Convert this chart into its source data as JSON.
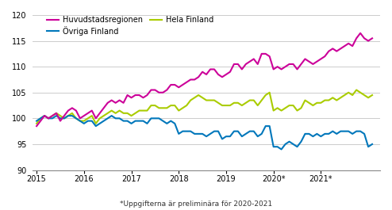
{
  "title": "",
  "footnote": "*Uppgifterna är preliminära för 2020-2021",
  "ylim": [
    90,
    120
  ],
  "yticks": [
    90,
    95,
    100,
    105,
    110,
    115,
    120
  ],
  "xlabel": "",
  "xtick_labels": [
    "2015",
    "2016",
    "2017",
    "2018",
    "2019",
    "2020*",
    "2021*"
  ],
  "xtick_positions": [
    0,
    12,
    24,
    36,
    48,
    60,
    72
  ],
  "series": {
    "Huvudstadsregionen": {
      "color": "#cc0099",
      "linewidth": 1.5,
      "values": [
        98.5,
        99.5,
        100.5,
        100.0,
        100.5,
        101.0,
        99.5,
        100.5,
        101.5,
        102.0,
        101.5,
        100.0,
        100.5,
        101.0,
        101.5,
        100.0,
        101.0,
        102.0,
        103.0,
        103.5,
        103.0,
        103.5,
        103.0,
        104.5,
        104.0,
        104.5,
        104.5,
        104.0,
        104.5,
        105.5,
        105.5,
        105.0,
        105.0,
        105.5,
        106.5,
        106.5,
        106.0,
        106.5,
        107.0,
        107.5,
        107.5,
        108.0,
        109.0,
        108.5,
        109.5,
        109.5,
        108.5,
        108.0,
        108.5,
        109.0,
        110.5,
        110.5,
        109.5,
        110.5,
        111.0,
        111.5,
        110.5,
        112.5,
        112.5,
        112.0,
        109.5,
        110.0,
        109.5,
        110.0,
        110.5,
        110.5,
        109.5,
        110.5,
        111.5,
        111.0,
        110.5,
        111.0,
        111.5,
        112.0,
        113.0,
        113.5,
        113.0,
        113.5,
        114.0,
        114.5,
        114.0,
        115.5,
        116.5,
        115.5,
        115.0,
        115.5
      ]
    },
    "Hela Finland": {
      "color": "#aacc00",
      "linewidth": 1.5,
      "values": [
        99.0,
        100.0,
        100.5,
        100.0,
        100.5,
        101.0,
        100.5,
        100.0,
        100.5,
        101.0,
        100.0,
        99.5,
        99.5,
        100.0,
        100.5,
        99.0,
        100.0,
        100.5,
        101.0,
        101.5,
        101.0,
        101.5,
        101.0,
        101.0,
        100.5,
        101.0,
        101.5,
        101.5,
        101.5,
        102.5,
        102.5,
        102.0,
        102.0,
        102.0,
        102.5,
        102.5,
        101.5,
        102.0,
        102.5,
        103.5,
        104.0,
        104.5,
        104.0,
        103.5,
        103.5,
        103.5,
        103.0,
        102.5,
        102.5,
        102.5,
        103.0,
        103.0,
        102.5,
        103.0,
        103.5,
        103.5,
        102.5,
        103.5,
        104.5,
        105.0,
        101.5,
        102.0,
        101.5,
        102.0,
        102.5,
        102.5,
        101.5,
        102.0,
        103.5,
        103.0,
        102.5,
        103.0,
        103.0,
        103.5,
        103.5,
        104.0,
        103.5,
        104.0,
        104.5,
        105.0,
        104.5,
        105.5,
        105.0,
        104.5,
        104.0,
        104.5
      ]
    },
    "Övriga Finland": {
      "color": "#0077bb",
      "linewidth": 1.5,
      "values": [
        99.5,
        100.0,
        100.5,
        100.0,
        100.0,
        100.5,
        100.0,
        100.0,
        100.5,
        100.5,
        100.0,
        99.5,
        99.0,
        99.5,
        99.5,
        98.5,
        99.0,
        99.5,
        100.0,
        100.5,
        100.0,
        100.0,
        99.5,
        99.5,
        99.0,
        99.5,
        99.5,
        99.5,
        99.0,
        100.0,
        100.0,
        100.0,
        99.5,
        99.0,
        99.5,
        99.0,
        97.0,
        97.5,
        97.5,
        97.5,
        97.0,
        97.0,
        97.0,
        96.5,
        97.0,
        97.5,
        97.5,
        96.0,
        96.5,
        96.5,
        97.5,
        97.5,
        96.5,
        97.0,
        97.5,
        97.5,
        96.5,
        97.0,
        98.5,
        98.5,
        94.5,
        94.5,
        94.0,
        95.0,
        95.5,
        95.0,
        94.5,
        95.5,
        97.0,
        97.0,
        96.5,
        97.0,
        96.5,
        97.0,
        97.0,
        97.5,
        97.0,
        97.5,
        97.5,
        97.5,
        97.0,
        97.5,
        97.5,
        97.0,
        94.5,
        95.0
      ]
    }
  },
  "legend_order": [
    "Huvudstadsregionen",
    "Övriga Finland",
    "Hela Finland"
  ],
  "legend_colors": {
    "Huvudstadsregionen": "#cc0099",
    "Övriga Finland": "#0077bb",
    "Hela Finland": "#aacc00"
  },
  "background_color": "#ffffff",
  "grid_color": "#cccccc",
  "n_months": 86,
  "start_year": 2015
}
